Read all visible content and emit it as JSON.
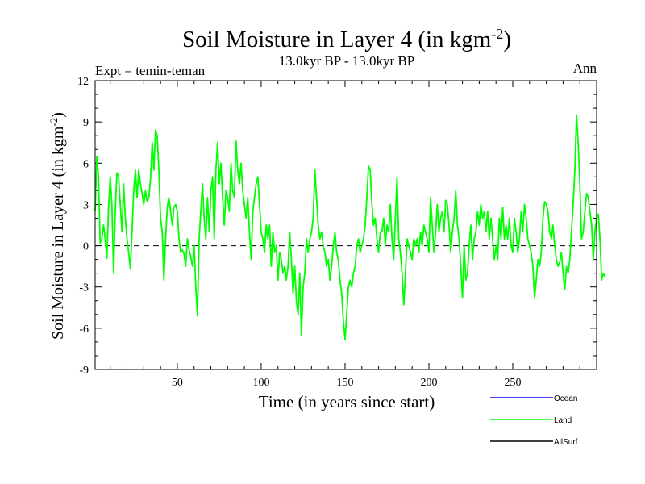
{
  "chart_data": {
    "type": "line",
    "title": "Soil Moisture in Layer 4 (in kgm",
    "title_sup": "-2",
    "title_close": ")",
    "subtitle": "13.0kyr BP - 13.0kyr BP",
    "left_label": "Expt = temin-teman",
    "right_label": "Ann",
    "xlabel": "Time (in years since start)",
    "ylabel": "Soil Moisture in Layer 4 (in kgm",
    "ylabel_sup": "-2",
    "ylabel_close": ")",
    "xlim": [
      1,
      300
    ],
    "ylim": [
      -9,
      12
    ],
    "x_ticks": [
      50,
      100,
      150,
      200,
      250
    ],
    "x_tick_labels": [
      "50",
      "100",
      "150",
      "200",
      "250"
    ],
    "y_ticks": [
      -9,
      -6,
      -3,
      0,
      3,
      6,
      9,
      12
    ],
    "y_tick_labels": [
      "-9",
      "-6",
      "-3",
      "0",
      "3",
      "6",
      "9",
      "12"
    ],
    "zero_line": 0,
    "legend": [
      {
        "name": "Ocean",
        "color": "#0000ff"
      },
      {
        "name": "Land",
        "color": "#00ff00"
      },
      {
        "name": "AllSurf",
        "color": "#000000"
      }
    ],
    "series": [
      {
        "name": "Land",
        "color": "#00ff00",
        "x_start": 1,
        "x_step": 1,
        "values": [
          2.5,
          6.5,
          5.0,
          0.2,
          0.5,
          1.5,
          0.5,
          -0.9,
          2.8,
          5.0,
          3.0,
          -2.0,
          2.5,
          5.3,
          5.0,
          3.0,
          1.0,
          4.5,
          2.0,
          0.5,
          -0.5,
          -1.7,
          1.0,
          4.0,
          5.5,
          3.5,
          5.5,
          4.5,
          3.8,
          3.0,
          4.0,
          3.2,
          3.5,
          4.8,
          7.5,
          5.5,
          8.4,
          8.0,
          5.5,
          2.0,
          1.0,
          -2.5,
          0.5,
          2.8,
          3.5,
          2.5,
          1.5,
          2.8,
          3.0,
          2.5,
          0.5,
          -0.5,
          -0.3,
          -0.6,
          -1.5,
          0.5,
          -0.3,
          -0.8,
          -1.5,
          0.0,
          -3.0,
          -5.1,
          0.5,
          2.5,
          4.5,
          2.0,
          0.5,
          3.5,
          1.0,
          4.0,
          5.0,
          0.5,
          5.5,
          7.5,
          4.5,
          6.0,
          3.5,
          1.5,
          4.0,
          3.5,
          2.5,
          6.0,
          4.0,
          3.5,
          7.6,
          5.5,
          4.5,
          6.0,
          4.0,
          3.0,
          2.0,
          3.5,
          1.0,
          -1.0,
          2.5,
          3.5,
          4.5,
          5.0,
          3.0,
          1.0,
          0.5,
          -0.5,
          1.5,
          0.5,
          1.5,
          -1.5,
          1.0,
          -0.5,
          0.0,
          -2.5,
          -0.5,
          -1.0,
          -2.0,
          -1.5,
          -2.5,
          -1.5,
          1.0,
          -1.0,
          -3.5,
          -1.5,
          -4.0,
          -5.0,
          -2.0,
          -6.5,
          -3.0,
          -2.0,
          0.5,
          -0.5,
          0.5,
          1.0,
          2.0,
          5.5,
          3.5,
          1.5,
          0.5,
          1.0,
          0.0,
          -0.5,
          -1.5,
          -1.0,
          -2.5,
          -1.5,
          0.0,
          1.0,
          -0.5,
          -1.0,
          -2.5,
          -3.5,
          -5.5,
          -6.8,
          -5.0,
          -3.0,
          -2.5,
          -3.0,
          -2.0,
          -1.5,
          0.0,
          0.5,
          -0.5,
          0.0,
          0.5,
          1.5,
          3.5,
          5.8,
          5.5,
          3.0,
          1.5,
          2.0,
          0.5,
          -0.5,
          1.0,
          1.0,
          2.0,
          0.0,
          1.5,
          1.0,
          3.0,
          0.5,
          -1.0,
          2.0,
          5.0,
          0.5,
          -0.5,
          -2.0,
          -4.3,
          -2.0,
          0.5,
          0.0,
          -0.5,
          -1.0,
          0.5,
          0.0,
          0.5,
          -0.5,
          1.0,
          0.0,
          1.5,
          1.0,
          0.5,
          -0.5,
          3.5,
          1.5,
          -0.5,
          1.0,
          3.0,
          1.0,
          2.0,
          2.5,
          1.0,
          3.3,
          3.0,
          1.5,
          -0.5,
          1.0,
          2.0,
          4.0,
          1.5,
          0.5,
          -1.5,
          -3.8,
          0.0,
          -2.5,
          -2.0,
          0.0,
          1.5,
          -1.0,
          0.5,
          1.0,
          2.5,
          1.5,
          3.0,
          2.0,
          2.5,
          1.0,
          2.5,
          0.5,
          2.0,
          0.5,
          -1.0,
          0.0,
          -1.0,
          2.0,
          0.5,
          2.8,
          0.5,
          1.5,
          0.5,
          2.0,
          0.0,
          -0.5,
          2.0,
          1.0,
          -0.5,
          0.5,
          2.5,
          1.0,
          3.0,
          2.0,
          0.5,
          0.0,
          -0.5,
          -1.5,
          -3.8,
          -2.5,
          -1.0,
          -1.5,
          -0.5,
          2.0,
          3.2,
          3.0,
          2.5,
          1.0,
          0.5,
          1.5,
          0.0,
          -1.0,
          -1.5,
          -1.2,
          -0.5,
          -2.0,
          -3.2,
          -1.5,
          -2.0,
          -1.0,
          1.0,
          3.0,
          5.5,
          9.5,
          7.5,
          4.5,
          0.5,
          1.0,
          2.5,
          3.8,
          3.5,
          2.5,
          1.5,
          -1.0,
          1.0,
          2.0,
          2.3,
          0.5,
          -2.5,
          -2.0,
          -2.3
        ]
      }
    ]
  }
}
